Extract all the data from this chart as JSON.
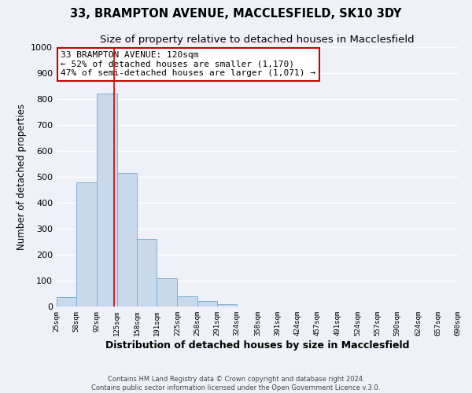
{
  "title": "33, BRAMPTON AVENUE, MACCLESFIELD, SK10 3DY",
  "subtitle": "Size of property relative to detached houses in Macclesfield",
  "xlabel": "Distribution of detached houses by size in Macclesfield",
  "ylabel": "Number of detached properties",
  "footer_lines": [
    "Contains HM Land Registry data © Crown copyright and database right 2024.",
    "Contains public sector information licensed under the Open Government Licence v.3.0."
  ],
  "bar_edges": [
    25,
    58,
    92,
    125,
    158,
    191,
    225,
    258,
    291,
    324,
    358,
    391,
    424,
    457,
    491,
    524,
    557,
    590,
    624,
    657,
    690
  ],
  "bar_heights": [
    35,
    480,
    820,
    515,
    262,
    110,
    40,
    20,
    10,
    0,
    0,
    0,
    0,
    0,
    0,
    0,
    0,
    0,
    0,
    0
  ],
  "bar_color": "#c9d9ec",
  "bar_edge_color": "#7bafd4",
  "vline_x": 120,
  "vline_color": "#cc0000",
  "annotation_text": "33 BRAMPTON AVENUE: 120sqm\n← 52% of detached houses are smaller (1,170)\n47% of semi-detached houses are larger (1,071) →",
  "annotation_box_color": "#ffffff",
  "annotation_box_edge_color": "#cc0000",
  "ylim": [
    0,
    1000
  ],
  "xlim": [
    25,
    690
  ],
  "bg_color": "#eef2f8",
  "plot_bg_color": "#eef2f8",
  "grid_color": "#ffffff",
  "title_fontsize": 10.5,
  "subtitle_fontsize": 9.5,
  "xlabel_fontsize": 9,
  "ylabel_fontsize": 8.5,
  "tick_labels": [
    "25sqm",
    "58sqm",
    "92sqm",
    "125sqm",
    "158sqm",
    "191sqm",
    "225sqm",
    "258sqm",
    "291sqm",
    "324sqm",
    "358sqm",
    "391sqm",
    "424sqm",
    "457sqm",
    "491sqm",
    "524sqm",
    "557sqm",
    "590sqm",
    "624sqm",
    "657sqm",
    "690sqm"
  ]
}
